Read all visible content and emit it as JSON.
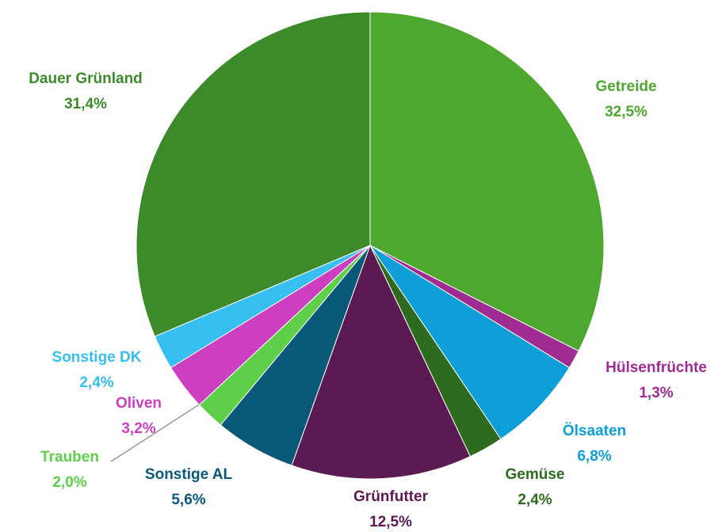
{
  "chart_data": {
    "type": "pie",
    "categories": [
      "Getreide",
      "Hülsenfrüchte",
      "Ölsaaten",
      "Gemüse",
      "Grünfutter",
      "Sonstige AL",
      "Trauben",
      "Oliven",
      "Sonstige DK",
      "Dauer Grünland"
    ],
    "values": [
      32.5,
      1.3,
      6.8,
      2.4,
      12.5,
      5.6,
      2.0,
      3.2,
      2.4,
      31.4
    ],
    "value_labels": [
      "32,5%",
      "1,3%",
      "6,8%",
      "2,4%",
      "12,5%",
      "5,6%",
      "2,0%",
      "3,2%",
      "2,4%",
      "31,4%"
    ],
    "colors": [
      "#4ea72e",
      "#a02b93",
      "#0e9fd8",
      "#2f6b1f",
      "#5c1a53",
      "#0a5878",
      "#5fcf4a",
      "#cc3fc0",
      "#36bff0",
      "#3c8a29"
    ]
  }
}
